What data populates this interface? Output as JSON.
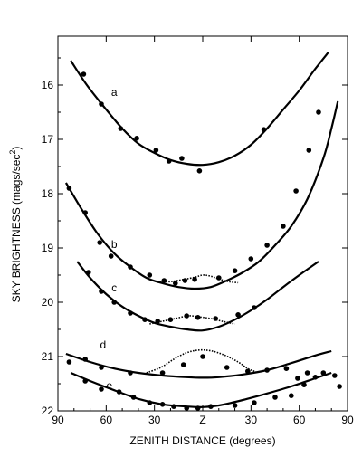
{
  "chart_data": {
    "type": "scatter",
    "xlabel": "ZENITH DISTANCE (degrees)",
    "ylabel_main": "SKY BRIGHTNESS (mags/sec",
    "ylabel_sup": "2",
    "ylabel_close": ")",
    "x_ticks": [
      {
        "v": -90,
        "label": "90"
      },
      {
        "v": -60,
        "label": "60"
      },
      {
        "v": -30,
        "label": "30"
      },
      {
        "v": 0,
        "label": "Z"
      },
      {
        "v": 30,
        "label": "30"
      },
      {
        "v": 60,
        "label": "60"
      },
      {
        "v": 90,
        "label": "90"
      }
    ],
    "y_ticks": [
      16,
      17,
      18,
      19,
      20,
      21,
      22
    ],
    "xlim": [
      -90,
      90
    ],
    "ylim": [
      15.1,
      22
    ],
    "y_inverted": true,
    "grid": false,
    "series": [
      {
        "name": "a",
        "label_at": [
          -55,
          16.2
        ],
        "curve": [
          [
            -82,
            15.55
          ],
          [
            -72,
            16.0
          ],
          [
            -60,
            16.45
          ],
          [
            -50,
            16.8
          ],
          [
            -40,
            17.08
          ],
          [
            -30,
            17.25
          ],
          [
            -20,
            17.38
          ],
          [
            -10,
            17.45
          ],
          [
            0,
            17.47
          ],
          [
            10,
            17.42
          ],
          [
            20,
            17.3
          ],
          [
            30,
            17.1
          ],
          [
            40,
            16.8
          ],
          [
            50,
            16.45
          ],
          [
            60,
            16.1
          ],
          [
            70,
            15.7
          ],
          [
            78,
            15.4
          ]
        ],
        "points": [
          [
            -74,
            15.8
          ],
          [
            -63,
            16.35
          ],
          [
            -51,
            16.8
          ],
          [
            -41,
            16.98
          ],
          [
            -29,
            17.2
          ],
          [
            -21,
            17.4
          ],
          [
            -13,
            17.35
          ],
          [
            -2,
            17.58
          ],
          [
            38,
            16.82
          ]
        ]
      },
      {
        "name": "b",
        "label_at": [
          -55,
          19.0
        ],
        "curve": [
          [
            -85,
            17.8
          ],
          [
            -75,
            18.3
          ],
          [
            -65,
            18.75
          ],
          [
            -55,
            19.1
          ],
          [
            -45,
            19.35
          ],
          [
            -35,
            19.55
          ],
          [
            -25,
            19.65
          ],
          [
            -15,
            19.72
          ],
          [
            -5,
            19.75
          ],
          [
            5,
            19.72
          ],
          [
            15,
            19.6
          ],
          [
            25,
            19.45
          ],
          [
            35,
            19.25
          ],
          [
            45,
            18.95
          ],
          [
            55,
            18.6
          ],
          [
            65,
            18.1
          ],
          [
            75,
            17.35
          ],
          [
            80,
            16.8
          ],
          [
            84,
            16.3
          ]
        ],
        "points": [
          [
            -83,
            17.9
          ],
          [
            -73,
            18.35
          ],
          [
            -64,
            18.9
          ],
          [
            -57,
            19.15
          ],
          [
            -45,
            19.35
          ],
          [
            -33,
            19.5
          ],
          [
            -24,
            19.6
          ],
          [
            -17,
            19.65
          ],
          [
            -11,
            19.6
          ],
          [
            -5,
            19.58
          ],
          [
            10,
            19.55
          ],
          [
            20,
            19.42
          ],
          [
            30,
            19.2
          ],
          [
            40,
            18.95
          ],
          [
            50,
            18.6
          ],
          [
            58,
            17.95
          ],
          [
            66,
            17.2
          ],
          [
            72,
            16.5
          ]
        ],
        "bump": [
          [
            -28,
            19.63
          ],
          [
            -20,
            19.62
          ],
          [
            -12,
            19.58
          ],
          [
            -5,
            19.54
          ],
          [
            0,
            19.5
          ],
          [
            5,
            19.52
          ],
          [
            10,
            19.57
          ],
          [
            16,
            19.62
          ],
          [
            22,
            19.64
          ]
        ]
      },
      {
        "name": "c",
        "label_at": [
          -55,
          19.8
        ],
        "curve": [
          [
            -78,
            19.25
          ],
          [
            -70,
            19.55
          ],
          [
            -60,
            19.85
          ],
          [
            -50,
            20.08
          ],
          [
            -40,
            20.25
          ],
          [
            -30,
            20.38
          ],
          [
            -20,
            20.45
          ],
          [
            -10,
            20.5
          ],
          [
            0,
            20.52
          ],
          [
            10,
            20.45
          ],
          [
            20,
            20.32
          ],
          [
            30,
            20.15
          ],
          [
            40,
            19.95
          ],
          [
            50,
            19.72
          ],
          [
            60,
            19.5
          ],
          [
            72,
            19.25
          ]
        ],
        "points": [
          [
            -71,
            19.45
          ],
          [
            -63,
            19.8
          ],
          [
            -55,
            20.0
          ],
          [
            -45,
            20.2
          ],
          [
            -36,
            20.32
          ],
          [
            -28,
            20.35
          ],
          [
            -20,
            20.32
          ],
          [
            -10,
            20.25
          ],
          [
            -3,
            20.28
          ],
          [
            8,
            20.3
          ],
          [
            22,
            20.23
          ],
          [
            32,
            20.1
          ]
        ],
        "bump": [
          [
            -33,
            20.4
          ],
          [
            -25,
            20.35
          ],
          [
            -17,
            20.3
          ],
          [
            -9,
            20.25
          ],
          [
            -2,
            20.27
          ],
          [
            5,
            20.3
          ],
          [
            12,
            20.35
          ],
          [
            20,
            20.4
          ]
        ]
      },
      {
        "name": "d",
        "label_at": [
          -62,
          20.85
        ],
        "curve": [
          [
            -85,
            20.95
          ],
          [
            -70,
            21.1
          ],
          [
            -55,
            21.22
          ],
          [
            -40,
            21.3
          ],
          [
            -25,
            21.35
          ],
          [
            -10,
            21.38
          ],
          [
            0,
            21.39
          ],
          [
            10,
            21.38
          ],
          [
            25,
            21.33
          ],
          [
            40,
            21.25
          ],
          [
            55,
            21.12
          ],
          [
            70,
            20.98
          ],
          [
            80,
            20.9
          ]
        ],
        "points": [
          [
            -83,
            21.1
          ],
          [
            -73,
            21.05
          ],
          [
            -63,
            21.2
          ],
          [
            -45,
            21.3
          ],
          [
            -25,
            21.3
          ],
          [
            -12,
            21.15
          ],
          [
            0,
            21.0
          ],
          [
            15,
            21.2
          ],
          [
            28,
            21.27
          ],
          [
            40,
            21.25
          ],
          [
            52,
            21.22
          ],
          [
            59,
            21.4
          ],
          [
            65,
            21.3
          ]
        ],
        "bump": [
          [
            -35,
            21.3
          ],
          [
            -26,
            21.2
          ],
          [
            -18,
            21.05
          ],
          [
            -10,
            20.93
          ],
          [
            -2,
            20.88
          ],
          [
            6,
            20.9
          ],
          [
            14,
            20.98
          ],
          [
            22,
            21.1
          ],
          [
            28,
            21.22
          ],
          [
            33,
            21.28
          ]
        ]
      },
      {
        "name": "e",
        "label_at": [
          -58,
          21.6
        ],
        "curve": [
          [
            -82,
            21.3
          ],
          [
            -70,
            21.45
          ],
          [
            -55,
            21.62
          ],
          [
            -40,
            21.78
          ],
          [
            -25,
            21.88
          ],
          [
            -10,
            21.92
          ],
          [
            0,
            21.93
          ],
          [
            10,
            21.9
          ],
          [
            25,
            21.8
          ],
          [
            40,
            21.68
          ],
          [
            55,
            21.55
          ],
          [
            70,
            21.4
          ],
          [
            80,
            21.3
          ]
        ],
        "points": [
          [
            -73,
            21.45
          ],
          [
            -63,
            21.6
          ],
          [
            -52,
            21.65
          ],
          [
            -43,
            21.75
          ],
          [
            -33,
            21.85
          ],
          [
            -25,
            21.88
          ],
          [
            -18,
            21.92
          ],
          [
            -10,
            21.95
          ],
          [
            -3,
            21.95
          ],
          [
            5,
            21.92
          ],
          [
            20,
            21.9
          ],
          [
            32,
            21.85
          ],
          [
            45,
            21.75
          ],
          [
            55,
            21.72
          ],
          [
            63,
            21.52
          ],
          [
            70,
            21.38
          ],
          [
            75,
            21.3
          ],
          [
            82,
            21.35
          ],
          [
            85,
            21.55
          ]
        ]
      }
    ]
  }
}
